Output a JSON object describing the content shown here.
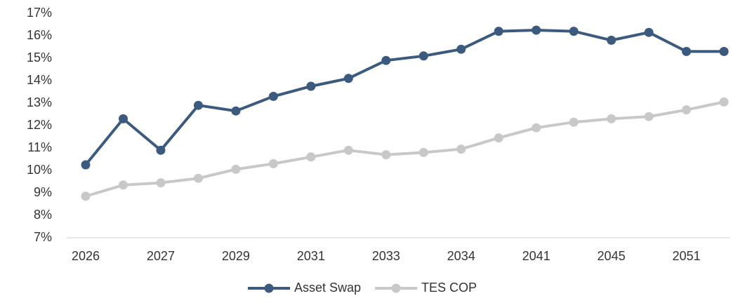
{
  "chart_data": {
    "type": "line",
    "categories": [
      "2026",
      null,
      "2027",
      null,
      "2029",
      null,
      "2031",
      null,
      "2033",
      null,
      "2034",
      null,
      "2041",
      null,
      "2045",
      null,
      "2051",
      null
    ],
    "series": [
      {
        "name": "Asset Swap",
        "color": "#3b5a7e",
        "values": [
          10.25,
          12.3,
          10.9,
          12.9,
          12.65,
          13.3,
          13.75,
          14.1,
          14.9,
          15.1,
          15.4,
          16.2,
          16.25,
          16.2,
          15.8,
          16.15,
          15.3,
          15.3
        ]
      },
      {
        "name": "TES COP",
        "color": "#c8c8c8",
        "values": [
          8.85,
          9.35,
          9.45,
          9.65,
          10.05,
          10.3,
          10.6,
          10.9,
          10.7,
          10.8,
          10.95,
          11.45,
          11.9,
          12.15,
          12.3,
          12.4,
          12.7,
          13.05
        ]
      }
    ],
    "ylim": [
      7,
      17
    ],
    "yticks": [
      {
        "value": 7,
        "label": "7%"
      },
      {
        "value": 8,
        "label": "8%"
      },
      {
        "value": 9,
        "label": "9%"
      },
      {
        "value": 10,
        "label": "10%"
      },
      {
        "value": 11,
        "label": "11%"
      },
      {
        "value": 12,
        "label": "12%"
      },
      {
        "value": 13,
        "label": "13%"
      },
      {
        "value": 14,
        "label": "14%"
      },
      {
        "value": 15,
        "label": "15%"
      },
      {
        "value": 16,
        "label": "16%"
      },
      {
        "value": 17,
        "label": "17%"
      }
    ],
    "legend": "bottom"
  }
}
